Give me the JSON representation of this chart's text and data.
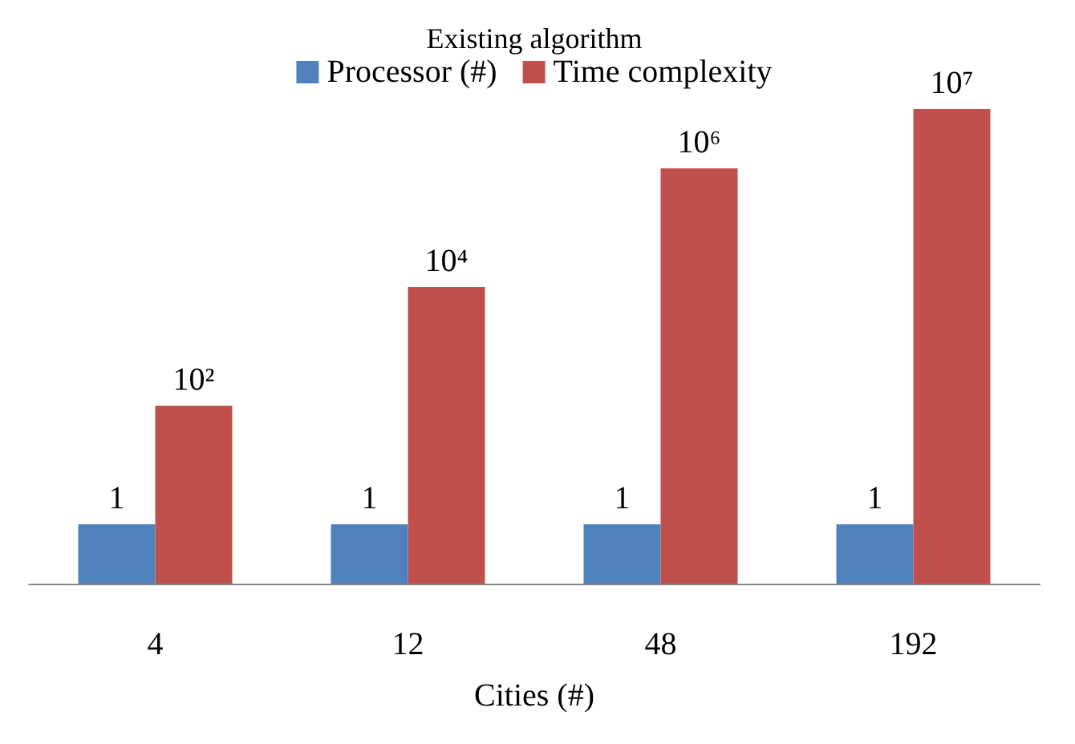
{
  "chart_data": {
    "type": "bar",
    "title": "Existing algorithm",
    "xlabel": "Cities (#)",
    "categories": [
      "4",
      "12",
      "48",
      "192"
    ],
    "log": true,
    "ylim": [
      0.1,
      10000000
    ],
    "legend": "top",
    "grid": false,
    "series": [
      {
        "name": "Processor (#)",
        "color": "#4f81bd",
        "values": [
          1,
          1,
          1,
          1
        ],
        "value_labels": [
          "1",
          "1",
          "1",
          "1"
        ]
      },
      {
        "name": "Time complexity",
        "color": "#c0504d",
        "values": [
          100,
          10000,
          1000000,
          10000000
        ],
        "value_labels": [
          "10²",
          "10⁴",
          "10⁶",
          "10⁷"
        ]
      }
    ]
  }
}
